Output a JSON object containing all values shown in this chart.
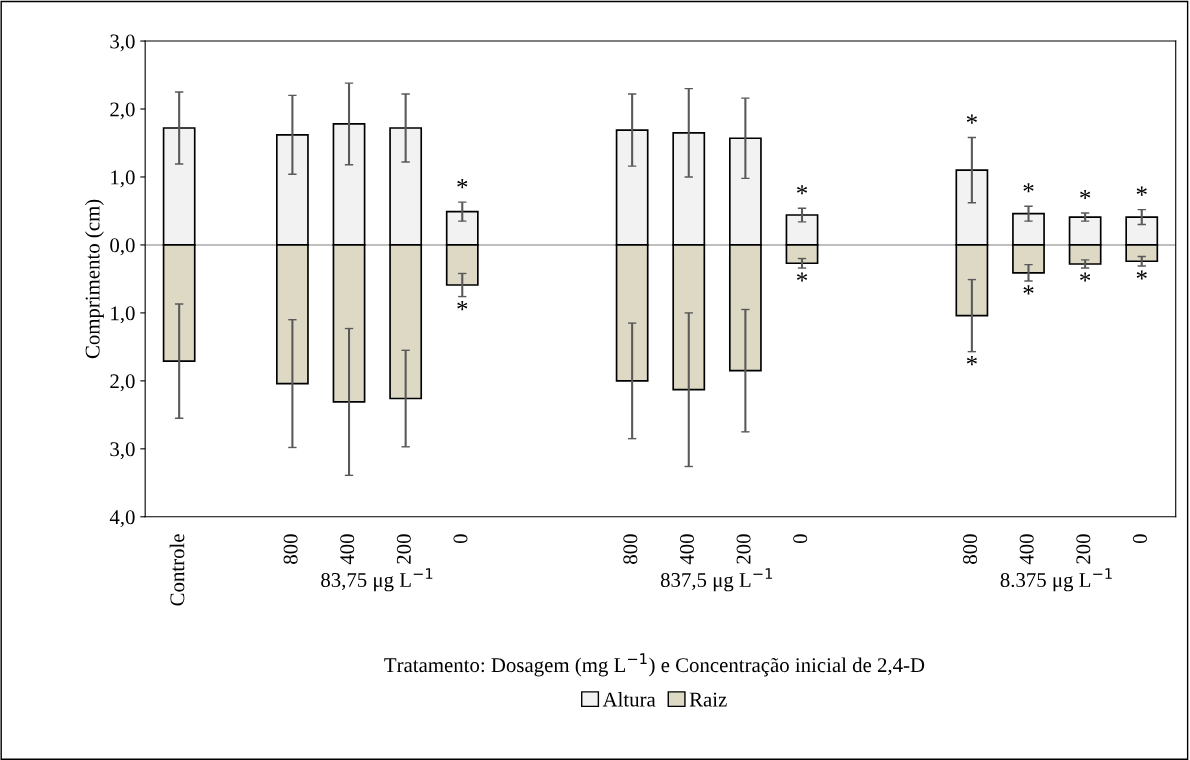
{
  "chart_data": {
    "type": "bar",
    "stacked": true,
    "categories": [
      "Controle",
      null,
      "800",
      "400",
      "200",
      "0",
      null,
      null,
      "800",
      "400",
      "200",
      "0",
      null,
      null,
      "800",
      "400",
      "200",
      "0"
    ],
    "series": [
      {
        "name": "Altura",
        "color": "#f2f2f2",
        "values": [
          1.72,
          null,
          1.62,
          1.78,
          1.72,
          0.49,
          null,
          null,
          1.69,
          1.65,
          1.57,
          0.44,
          null,
          null,
          1.1,
          0.46,
          0.41,
          0.41
        ],
        "errors": [
          0.53,
          null,
          0.58,
          0.6,
          0.5,
          0.14,
          null,
          null,
          0.53,
          0.65,
          0.59,
          0.1,
          null,
          null,
          0.48,
          0.11,
          0.06,
          0.11
        ],
        "value_labels": [
          null,
          null,
          null,
          null,
          null,
          "*",
          null,
          null,
          null,
          null,
          null,
          "*",
          null,
          null,
          "*",
          "*",
          "*",
          "*"
        ]
      },
      {
        "name": "Raiz",
        "color": "#ddd9c4",
        "values": [
          -1.71,
          null,
          -2.04,
          -2.31,
          -2.26,
          -0.59,
          null,
          null,
          -2.0,
          -2.13,
          -1.85,
          -0.27,
          null,
          null,
          -1.04,
          -0.41,
          -0.28,
          -0.24
        ],
        "errors": [
          0.84,
          null,
          0.94,
          1.08,
          0.71,
          0.17,
          null,
          null,
          0.85,
          1.13,
          0.9,
          0.07,
          null,
          null,
          0.53,
          0.12,
          0.06,
          0.07
        ],
        "value_labels": [
          null,
          null,
          null,
          null,
          null,
          "*",
          null,
          null,
          null,
          null,
          null,
          "*",
          null,
          null,
          "*",
          "*",
          "*",
          "*"
        ]
      }
    ],
    "ylim": [
      -4,
      3
    ],
    "yticks": [
      {
        "value": -4,
        "label": "4,0"
      },
      {
        "value": -3,
        "label": "3,0"
      },
      {
        "value": -2,
        "label": "2,0"
      },
      {
        "value": -1,
        "label": "1,0"
      },
      {
        "value": 0,
        "label": "0,0"
      },
      {
        "value": 1,
        "label": "1,0"
      },
      {
        "value": 2,
        "label": "2,0"
      },
      {
        "value": 3,
        "label": "3,0"
      }
    ],
    "ylabel": "Comprimento (cm)",
    "xlabel": "Tratamento: Dosagem (mg L$^{−1}$) e Concentração inicial de 2,4-D",
    "annotations": [
      "83,75 μg L$^{−1}$",
      "837,5 μg L$^{−1}$",
      "8.375 μg L$^{−1}$"
    ],
    "ref_lines": [
      {
        "axis": "y",
        "value": 0,
        "color": "#bfbfbf"
      }
    ],
    "grid": false,
    "legend": "bottom"
  }
}
